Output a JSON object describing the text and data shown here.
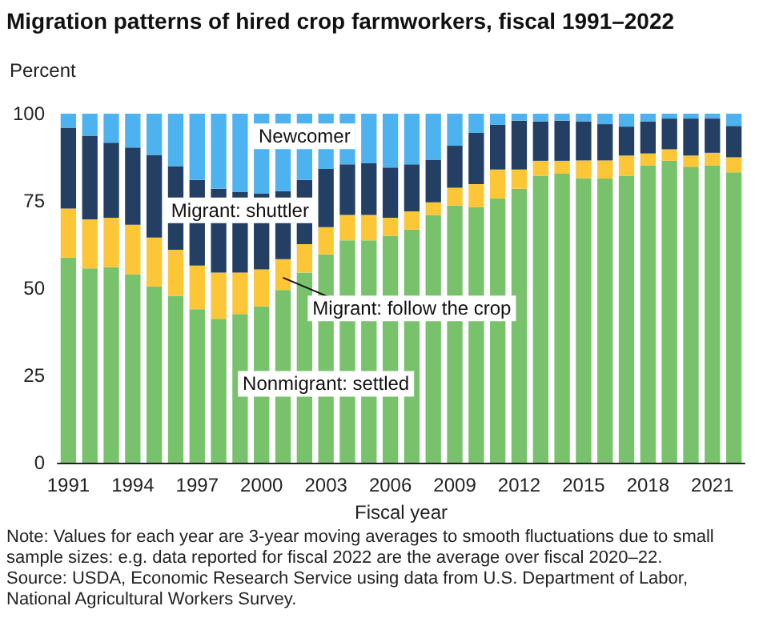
{
  "chart_data": {
    "type": "bar",
    "stacked": true,
    "title": "Migration patterns of hired crop farmworkers, fiscal 1991–2022",
    "ylabel": "Percent",
    "xlabel": "Fiscal year",
    "categories": [
      "1991",
      null,
      null,
      "1994",
      null,
      null,
      "1997",
      null,
      null,
      "2000",
      null,
      null,
      "2003",
      null,
      null,
      "2006",
      null,
      null,
      "2009",
      null,
      null,
      "2012",
      null,
      null,
      "2015",
      null,
      null,
      "2018",
      null,
      null,
      "2021",
      null
    ],
    "series": [
      {
        "name": "Nonmigrant: settled",
        "color": "#77c26a",
        "values": [
          58.8,
          55.7,
          56.0,
          54.0,
          50.5,
          47.8,
          44.0,
          41.2,
          42.6,
          44.8,
          49.5,
          54.5,
          59.7,
          63.7,
          63.7,
          65.0,
          66.8,
          71.0,
          73.7,
          73.2,
          75.7,
          78.5,
          82.2,
          82.8,
          81.5,
          81.4,
          82.2,
          85.2,
          86.5,
          84.8,
          85.2,
          83.2
        ]
      },
      {
        "name": "Migrant: follow the crop",
        "color": "#fdc636",
        "values": [
          14.0,
          14.0,
          14.2,
          14.2,
          14.0,
          13.2,
          12.5,
          13.3,
          11.9,
          10.6,
          8.8,
          8.1,
          7.8,
          7.3,
          7.3,
          5.2,
          5.2,
          3.6,
          5.1,
          6.6,
          8.3,
          5.5,
          4.3,
          3.7,
          5.1,
          5.2,
          5.8,
          3.4,
          3.3,
          3.2,
          3.6,
          4.3
        ]
      },
      {
        "name": "Migrant: shuttler",
        "color": "#233f63",
        "values": [
          23.2,
          24.0,
          21.5,
          22.1,
          23.7,
          24.0,
          24.5,
          24.0,
          23.0,
          21.8,
          19.5,
          18.4,
          16.7,
          14.5,
          14.8,
          14.4,
          13.5,
          12.2,
          12.0,
          14.7,
          12.8,
          14.0,
          11.3,
          11.5,
          11.2,
          10.4,
          8.3,
          9.2,
          8.8,
          10.6,
          9.8,
          9.0
        ]
      },
      {
        "name": "Newcomer",
        "color": "#4db3f0",
        "values": [
          4.0,
          6.3,
          8.3,
          9.7,
          11.8,
          15.0,
          19.0,
          21.5,
          22.5,
          22.8,
          22.2,
          19.0,
          15.8,
          14.5,
          14.2,
          15.4,
          14.5,
          13.2,
          9.2,
          5.5,
          3.2,
          2.0,
          2.2,
          2.0,
          2.2,
          3.0,
          3.7,
          2.2,
          1.4,
          1.4,
          1.4,
          3.5
        ]
      }
    ],
    "ylim": [
      0,
      100
    ],
    "yticks": [
      0,
      25,
      50,
      75,
      100
    ],
    "grid": false,
    "legend": false,
    "annotations": [
      "Note: Values for each year are 3-year moving averages to smooth fluctuations due to small sample sizes: e.g. data reported for fiscal 2022 are the average over fiscal 2020–22.",
      "Source: USDA, Economic Research Service using data from U.S. Department of Labor, National Agricultural Workers Survey."
    ]
  }
}
